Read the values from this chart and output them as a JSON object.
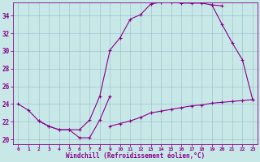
{
  "xlabel": "Windchill (Refroidissement éolien,°C)",
  "bg_color": "#c8e8e8",
  "grid_color": "#99bbcc",
  "line_color": "#880088",
  "xlim": [
    -0.5,
    23.5
  ],
  "ylim": [
    19.5,
    35.5
  ],
  "xticks": [
    0,
    1,
    2,
    3,
    4,
    5,
    6,
    7,
    8,
    9,
    10,
    11,
    12,
    13,
    14,
    15,
    16,
    17,
    18,
    19,
    20,
    21,
    22,
    23
  ],
  "yticks": [
    20,
    22,
    24,
    26,
    28,
    30,
    32,
    34
  ],
  "curve1_x": [
    0,
    1,
    2,
    3,
    4,
    5,
    6,
    7,
    8,
    9,
    10,
    11,
    12,
    13,
    14,
    15,
    16,
    17,
    18,
    19,
    20
  ],
  "curve1_y": [
    24.0,
    23.3,
    22.1,
    21.5,
    21.1,
    21.1,
    21.1,
    22.2,
    24.9,
    30.1,
    31.5,
    33.6,
    34.1,
    35.3,
    35.5,
    35.5,
    35.4,
    35.4,
    35.4,
    35.2,
    35.1
  ],
  "curve2_x": [
    2,
    3,
    4,
    5,
    6,
    7,
    8,
    9
  ],
  "curve2_y": [
    22.1,
    21.5,
    21.1,
    21.1,
    20.2,
    20.2,
    22.2,
    24.9
  ],
  "curve2b_x": [
    19,
    20,
    21,
    22,
    23
  ],
  "curve2b_y": [
    35.2,
    33.0,
    30.9,
    29.0,
    24.5
  ],
  "curve3_x": [
    9,
    10,
    11,
    12,
    13,
    14,
    15,
    16,
    17,
    18,
    19,
    20,
    21,
    22,
    23
  ],
  "curve3_y": [
    21.5,
    21.8,
    22.1,
    22.5,
    23.0,
    23.2,
    23.4,
    23.6,
    23.8,
    23.9,
    24.1,
    24.2,
    24.3,
    24.4,
    24.5
  ]
}
